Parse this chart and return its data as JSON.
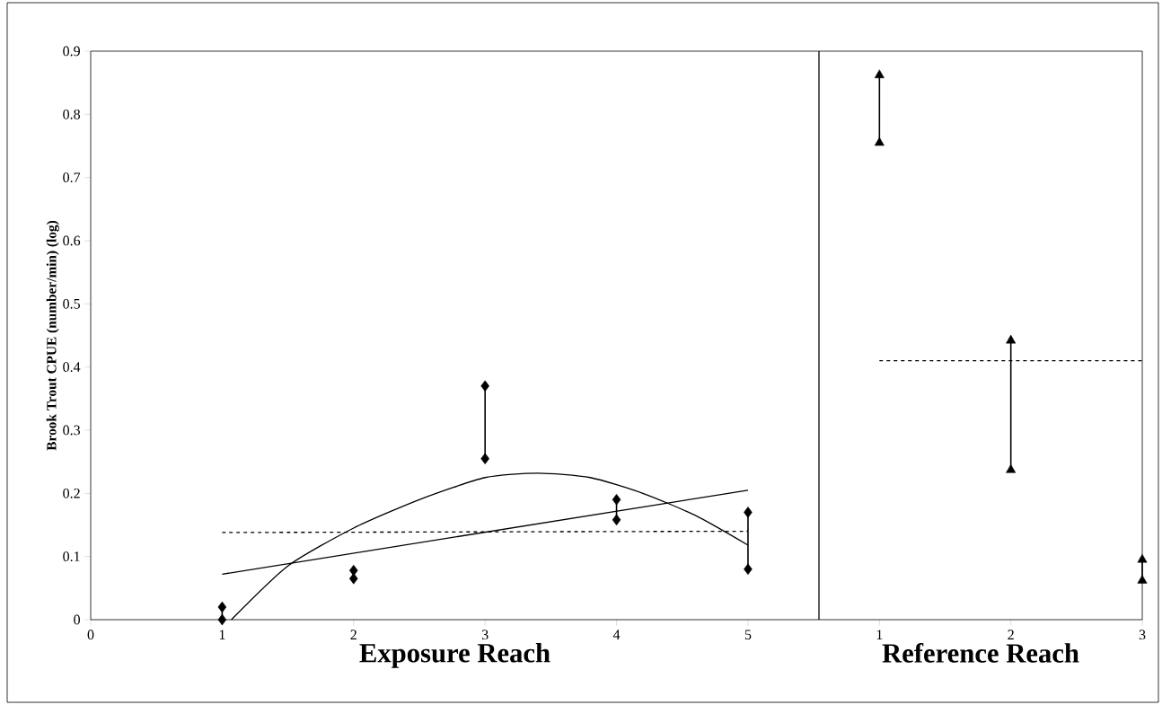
{
  "chart_data": [
    {
      "type": "scatter",
      "ylabel": "Brook Trout CPUE (number/min) (log)",
      "xlabel": "Exposure Reach",
      "xlim": [
        0,
        5.54
      ],
      "ylim": [
        0,
        0.9
      ],
      "xticks": [
        0,
        1,
        2,
        3,
        4,
        5
      ],
      "yticks": [
        0,
        0.1,
        0.2,
        0.3,
        0.4,
        0.5,
        0.6,
        0.7,
        0.8,
        0.9
      ],
      "series": [
        {
          "color": "#000000",
          "marker": "diamond",
          "x": [
            1,
            2,
            3,
            4,
            5
          ],
          "values": [
            0.02,
            0.078,
            0.37,
            0.19,
            0.17
          ],
          "errors": [
            [
              0,
              0.02
            ],
            [
              0.065,
              0.078
            ],
            [
              0.255,
              0.37
            ],
            [
              0.158,
              0.19
            ],
            [
              0.08,
              0.17
            ]
          ]
        },
        {
          "color": "#000000",
          "marker": "diamond",
          "x": [
            1,
            2,
            3,
            4,
            5
          ],
          "values": [
            0,
            0.065,
            0.255,
            0.158,
            0.08
          ]
        },
        {
          "type": "line",
          "color": "#000000",
          "marker": "none",
          "line_style": "dashed",
          "x": [
            1,
            5
          ],
          "values": [
            0.138,
            0.14
          ]
        },
        {
          "type": "line",
          "color": "#000000",
          "marker": "none",
          "line_style": "solid",
          "x": [
            1,
            5
          ],
          "values": [
            0.072,
            0.205
          ]
        },
        {
          "type": "line",
          "color": "#000000",
          "marker": "none",
          "line_style": "solid",
          "x": [
            1.07,
            1.5,
            2,
            2.5,
            3,
            3.4,
            3.8,
            4.2,
            4.6,
            5
          ],
          "values": [
            0,
            0.085,
            0.145,
            0.19,
            0.225,
            0.232,
            0.225,
            0.2,
            0.165,
            0.118
          ]
        }
      ]
    },
    {
      "type": "scatter",
      "xlabel": "Reference Reach",
      "xlim": [
        0.54,
        3
      ],
      "ylim": [
        0,
        0.9
      ],
      "xticks": [
        1,
        2,
        3
      ],
      "tick_labels": "x",
      "series": [
        {
          "color": "#000000",
          "marker": "triangle",
          "x": [
            1,
            2,
            3
          ],
          "values": [
            0.862,
            0.442,
            0.095
          ],
          "errors": [
            [
              0.755,
              0.862
            ],
            [
              0.237,
              0.442
            ],
            [
              0.062,
              0.095
            ]
          ]
        },
        {
          "color": "#000000",
          "marker": "triangle",
          "x": [
            1,
            2,
            3
          ],
          "values": [
            0.755,
            0.237,
            0.062
          ]
        },
        {
          "type": "line",
          "color": "#000000",
          "marker": "none",
          "line_style": "dashed",
          "x": [
            1,
            3
          ],
          "values": [
            0.41,
            0.41
          ]
        }
      ]
    }
  ]
}
